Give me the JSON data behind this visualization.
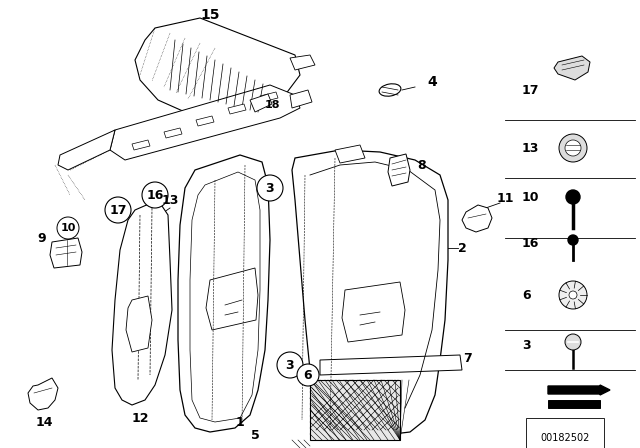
{
  "bg_color": "#ffffff",
  "fg_color": "#000000",
  "fig_width": 6.4,
  "fig_height": 4.48,
  "dpi": 100,
  "watermark": "00182502"
}
